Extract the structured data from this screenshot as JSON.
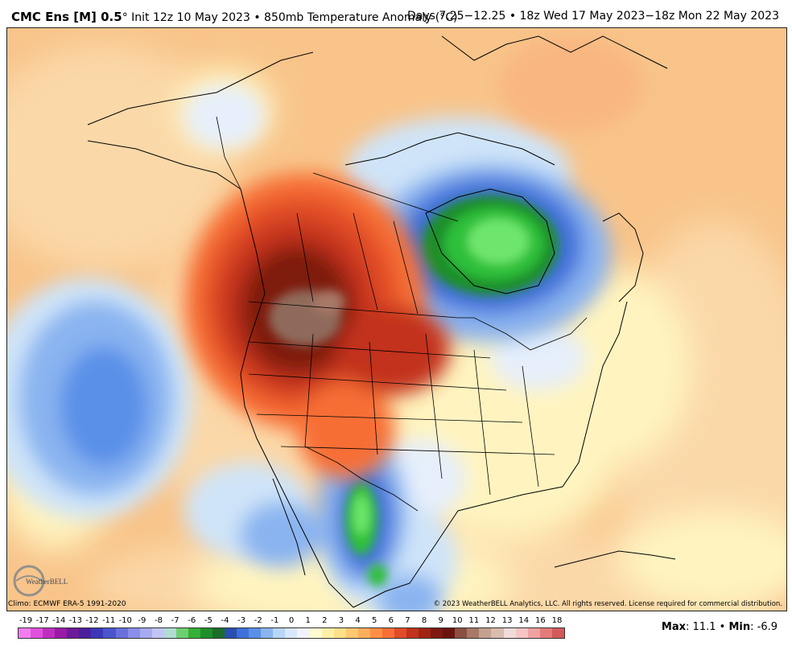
{
  "header": {
    "model": "CMC Ens [M] 0.5",
    "model_suffix": "°",
    "init": "Init 12z 10 May 2023",
    "bullet": "•",
    "field": "850mb Temperature Anomaly (°C)",
    "valid": "Days 7.25−12.25 • 18z Wed 17 May 2023−18z Mon 22 May 2023"
  },
  "footer": {
    "climo": "Climo: ECMWF ERA-5 1991-2020",
    "copyright": "© 2023 WeatherBELL Analytics, LLC. All rights reserved. License required for commercial distribution."
  },
  "logo": {
    "text": "WeatherBELL",
    "icon": "weatherbell-globe-icon"
  },
  "stats": {
    "max_label": "Max",
    "max": "11.1",
    "sep": "•",
    "min_label": "Min",
    "min": "-6.9"
  },
  "colorbar": {
    "labels": [
      "-19",
      "-17",
      "-14",
      "-13",
      "-12",
      "-11",
      "-10",
      "-9",
      "-8",
      "-7",
      "-6",
      "-5",
      "-4",
      "-3",
      "-2",
      "-1",
      "0",
      "1",
      "2",
      "3",
      "4",
      "5",
      "6",
      "7",
      "8",
      "9",
      "10",
      "11",
      "12",
      "13",
      "14",
      "16",
      "18"
    ],
    "colors": [
      "#f37cf0",
      "#e050dd",
      "#c02ec0",
      "#9a1aa8",
      "#6d1a9a",
      "#4a1f9e",
      "#3a37b8",
      "#4a55cc",
      "#6a70dc",
      "#8a8ee8",
      "#a6aaf0",
      "#c2c4f6",
      "#b0dcd4",
      "#6ecf6e",
      "#35b035",
      "#1f8f2a",
      "#1a6e28",
      "#2a4fb0",
      "#3f70d8",
      "#5a90e8",
      "#8ab4f0",
      "#b8d6f8",
      "#d8e8fc",
      "#f2f2fa",
      "#fffbd0",
      "#fff0a8",
      "#ffe08a",
      "#ffc870",
      "#ffae5a",
      "#ff8f45",
      "#f76e36",
      "#e04b28",
      "#c2321c",
      "#a02414",
      "#7e1a10",
      "#6a1410",
      "#8a5040",
      "#a87868",
      "#c4a090",
      "#d8bcae",
      "#f0dada",
      "#f6c4c4",
      "#f0a0a0",
      "#e47a7a",
      "#d45a5a"
    ]
  },
  "map": {
    "colors": {
      "background_warm": "#f8c48a",
      "light_orange": "#fbd8a8",
      "pale_yellow": "#fff4c0",
      "ocean_orange": "#f9b680",
      "hot_red": "#d6391c",
      "dark_red": "#7a1208",
      "brown": "#8f6a5c",
      "cold_blue": "#3a78d8",
      "pale_blue": "#cfe4f8",
      "green": "#2fbf3a",
      "bright_green": "#6ee66c",
      "lines": "#000000"
    }
  }
}
